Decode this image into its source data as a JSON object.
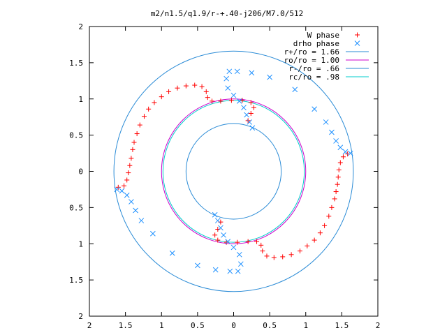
{
  "colors": {
    "w_phase": "#ff0000",
    "drho_phase": "#1e90ff",
    "r_plus": "#2a8bd6",
    "ro": "#cc00cc",
    "r_minus": "#2a8bd6",
    "rc": "#00cccc",
    "axis": "#000000"
  },
  "chart_data": {
    "type": "scatter",
    "title": "m2/n1.5/q1.9/r-+.40-j206/M7.0/512",
    "xlim": [
      -2,
      2
    ],
    "ylim": [
      -2,
      2
    ],
    "grid": false,
    "legend_position": "top-right",
    "x_ticks": [
      -2,
      -1.5,
      -1,
      -0.5,
      0,
      0.5,
      1,
      1.5,
      2
    ],
    "x_tick_labels": [
      "2",
      "1.5",
      "1",
      "0.5",
      "0",
      "0.5",
      "1",
      "1.5",
      "2"
    ],
    "y_ticks": [
      -2,
      -1.5,
      -1,
      -0.5,
      0,
      0.5,
      1,
      1.5,
      2
    ],
    "y_tick_labels": [
      "2",
      "1.5",
      "1",
      "0.5",
      "0",
      "0.5",
      "1",
      "1.5",
      "2"
    ],
    "legend": [
      {
        "label": "W phase",
        "marker": "plus",
        "color_key": "w_phase"
      },
      {
        "label": "drho phase",
        "marker": "cross",
        "color_key": "drho_phase"
      },
      {
        "label": "r+/ro = 1.66",
        "marker": "line",
        "color_key": "r_plus"
      },
      {
        "label": "ro/ro = 1.00",
        "marker": "line",
        "color_key": "ro"
      },
      {
        "label": "r-/ro = .66",
        "marker": "line",
        "color_key": "r_minus"
      },
      {
        "label": "rc/ro = .98",
        "marker": "line",
        "color_key": "rc"
      }
    ],
    "circles": [
      {
        "r": 1.66,
        "color_key": "r_plus"
      },
      {
        "r": 1.0,
        "color_key": "ro"
      },
      {
        "r": 0.66,
        "color_key": "r_minus"
      },
      {
        "r": 0.98,
        "color_key": "rc"
      }
    ],
    "series": [
      {
        "name": "W phase",
        "marker": "plus",
        "points": [
          [
            1.58,
            0.24
          ],
          [
            1.52,
            0.2
          ],
          [
            1.48,
            0.12
          ],
          [
            1.46,
            0.02
          ],
          [
            1.45,
            -0.08
          ],
          [
            1.44,
            -0.18
          ],
          [
            1.42,
            -0.28
          ],
          [
            1.4,
            -0.38
          ],
          [
            1.36,
            -0.5
          ],
          [
            1.32,
            -0.62
          ],
          [
            1.26,
            -0.75
          ],
          [
            1.2,
            -0.85
          ],
          [
            1.12,
            -0.95
          ],
          [
            1.02,
            -1.03
          ],
          [
            0.92,
            -1.1
          ],
          [
            0.8,
            -1.15
          ],
          [
            0.68,
            -1.18
          ],
          [
            0.56,
            -1.19
          ],
          [
            0.46,
            -1.17
          ],
          [
            0.4,
            -1.1
          ],
          [
            0.38,
            -1.02
          ],
          [
            0.32,
            -0.97
          ],
          [
            0.2,
            -0.97
          ],
          [
            0.05,
            -0.98
          ],
          [
            -0.1,
            -0.98
          ],
          [
            -0.22,
            -0.95
          ],
          [
            -0.26,
            -0.88
          ],
          [
            -0.22,
            -0.8
          ],
          [
            -0.18,
            -0.7
          ],
          [
            -1.6,
            -0.22
          ],
          [
            -1.52,
            -0.2
          ],
          [
            -1.48,
            -0.12
          ],
          [
            -1.46,
            -0.02
          ],
          [
            -1.44,
            0.08
          ],
          [
            -1.42,
            0.18
          ],
          [
            -1.4,
            0.3
          ],
          [
            -1.38,
            0.4
          ],
          [
            -1.34,
            0.52
          ],
          [
            -1.3,
            0.64
          ],
          [
            -1.24,
            0.76
          ],
          [
            -1.18,
            0.86
          ],
          [
            -1.1,
            0.95
          ],
          [
            -1.0,
            1.03
          ],
          [
            -0.9,
            1.1
          ],
          [
            -0.78,
            1.15
          ],
          [
            -0.66,
            1.18
          ],
          [
            -0.54,
            1.19
          ],
          [
            -0.44,
            1.17
          ],
          [
            -0.38,
            1.1
          ],
          [
            -0.36,
            1.02
          ],
          [
            -0.3,
            0.97
          ],
          [
            -0.18,
            0.97
          ],
          [
            -0.03,
            0.98
          ],
          [
            0.12,
            0.98
          ],
          [
            0.24,
            0.95
          ],
          [
            0.28,
            0.88
          ],
          [
            0.24,
            0.8
          ],
          [
            0.2,
            0.7
          ]
        ]
      },
      {
        "name": "drho phase",
        "marker": "cross",
        "points": [
          [
            1.62,
            0.25
          ],
          [
            1.55,
            0.27
          ],
          [
            1.48,
            0.33
          ],
          [
            1.42,
            0.42
          ],
          [
            1.36,
            0.54
          ],
          [
            1.28,
            0.68
          ],
          [
            1.12,
            0.86
          ],
          [
            0.85,
            1.13
          ],
          [
            0.5,
            1.3
          ],
          [
            0.25,
            1.36
          ],
          [
            0.05,
            1.38
          ],
          [
            -0.06,
            1.38
          ],
          [
            -0.1,
            1.28
          ],
          [
            -0.08,
            1.15
          ],
          [
            0.0,
            1.05
          ],
          [
            0.08,
            0.97
          ],
          [
            0.14,
            0.88
          ],
          [
            0.18,
            0.78
          ],
          [
            0.22,
            0.68
          ],
          [
            0.26,
            0.6
          ],
          [
            -1.62,
            -0.25
          ],
          [
            -1.55,
            -0.27
          ],
          [
            -1.48,
            -0.33
          ],
          [
            -1.42,
            -0.42
          ],
          [
            -1.36,
            -0.54
          ],
          [
            -1.28,
            -0.68
          ],
          [
            -1.12,
            -0.86
          ],
          [
            -0.85,
            -1.13
          ],
          [
            -0.5,
            -1.3
          ],
          [
            -0.25,
            -1.36
          ],
          [
            -0.05,
            -1.38
          ],
          [
            0.06,
            -1.38
          ],
          [
            0.1,
            -1.28
          ],
          [
            0.08,
            -1.15
          ],
          [
            0.0,
            -1.05
          ],
          [
            -0.08,
            -0.97
          ],
          [
            -0.14,
            -0.88
          ],
          [
            -0.18,
            -0.78
          ],
          [
            -0.22,
            -0.68
          ],
          [
            -0.26,
            -0.6
          ]
        ]
      }
    ]
  }
}
